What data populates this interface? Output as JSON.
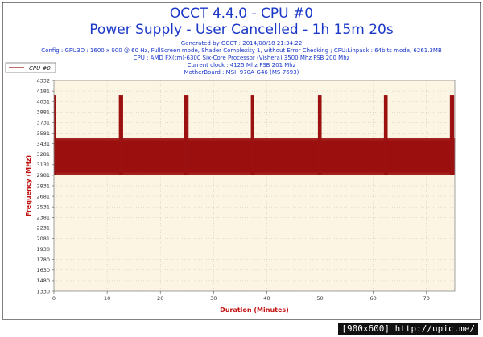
{
  "chart_data": {
    "type": "line",
    "title": "OCCT 4.4.0 - CPU #0",
    "subtitle": "Power Supply - User Cancelled - 1h 15m 20s",
    "info_lines": [
      "Generated by OCCT : 2014/08/18 21:34:22",
      "Config : GPU3D : 1600 x 900 @ 60 Hz, FullScreen mode, Shader Complexity 1, without Error Checking ; CPU:Linpack : 64bits mode, 6261.3MB",
      "CPU : AMD FX(tm)-6300 Six-Core Processor (Vishera) 3500 Mhz FSB 200 Mhz",
      "Current clock : 4125 Mhz FSB 201 Mhz",
      "MotherBoard : MSI: 970A-G46 (MS-7693)"
    ],
    "xlabel": "Duration (Minutes)",
    "ylabel": "Frequency (MHz)",
    "xlim": [
      0,
      75.33
    ],
    "ylim": [
      1330,
      4332
    ],
    "x_ticks": [
      "0",
      "10",
      "20",
      "30",
      "40",
      "50",
      "60",
      "70"
    ],
    "y_ticks": [
      "1330",
      "1480",
      "1630",
      "1780",
      "1930",
      "2081",
      "2231",
      "2381",
      "2531",
      "2681",
      "2831",
      "2981",
      "3131",
      "3281",
      "3431",
      "3581",
      "3731",
      "3881",
      "4031",
      "4181",
      "4332"
    ],
    "grid": true,
    "legend_position": "top-left",
    "series": [
      {
        "name": "CPU #0",
        "color": "#9b1010",
        "oscillation": {
          "low": 2990,
          "high": 3510
        },
        "spikes": [
          {
            "start": 0.0,
            "end": 0.4,
            "value": 4125
          },
          {
            "start": 12.2,
            "end": 13.0,
            "value": 4125
          },
          {
            "start": 24.5,
            "end": 25.3,
            "value": 4125
          },
          {
            "start": 37.0,
            "end": 37.6,
            "value": 4125
          },
          {
            "start": 49.6,
            "end": 50.3,
            "value": 4125
          },
          {
            "start": 62.0,
            "end": 62.7,
            "value": 4125
          },
          {
            "start": 74.4,
            "end": 75.2,
            "value": 4125
          }
        ]
      }
    ]
  },
  "footer": "[900x600] http://upic.me/"
}
